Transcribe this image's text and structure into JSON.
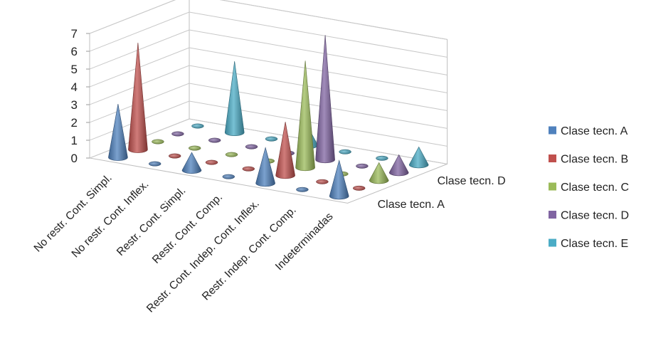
{
  "chart_data": {
    "type": "3d-cone-column",
    "title": "",
    "categories": [
      "No restr. Cont. Simpl.",
      "No restr. Cont. Inflex.",
      "Restr. Cont. Simpl.",
      "Restr. Cont. Comp.",
      "Restr. Cont. Indep. Cont. Inflex.",
      "Restr. Indep. Cont. Comp.",
      "Indeterminadas"
    ],
    "series": [
      {
        "name": "Clase tecn. A",
        "color": "#4F81BD",
        "values": [
          3,
          0,
          1,
          0,
          2,
          0,
          2
        ]
      },
      {
        "name": "Clase tecn. B",
        "color": "#C0504D",
        "values": [
          6,
          0,
          0,
          0,
          3,
          0,
          0
        ]
      },
      {
        "name": "Clase tecn. C",
        "color": "#9BBB59",
        "values": [
          0,
          0,
          0,
          0,
          6,
          0,
          1
        ]
      },
      {
        "name": "Clase tecn. D",
        "color": "#8064A2",
        "values": [
          0,
          0,
          0,
          0,
          7,
          0,
          1
        ]
      },
      {
        "name": "Clase tecn. E",
        "color": "#4BACC6",
        "values": [
          0,
          4,
          0,
          1,
          0,
          0,
          1
        ]
      }
    ],
    "depth_axis_labels": [
      "Clase tecn. A",
      "Clase tecn. D"
    ],
    "y_ticks": [
      "0",
      "1",
      "2",
      "3",
      "4",
      "5",
      "6",
      "7"
    ],
    "ylim": [
      0,
      7
    ],
    "grid": true,
    "legend_position": "right"
  }
}
